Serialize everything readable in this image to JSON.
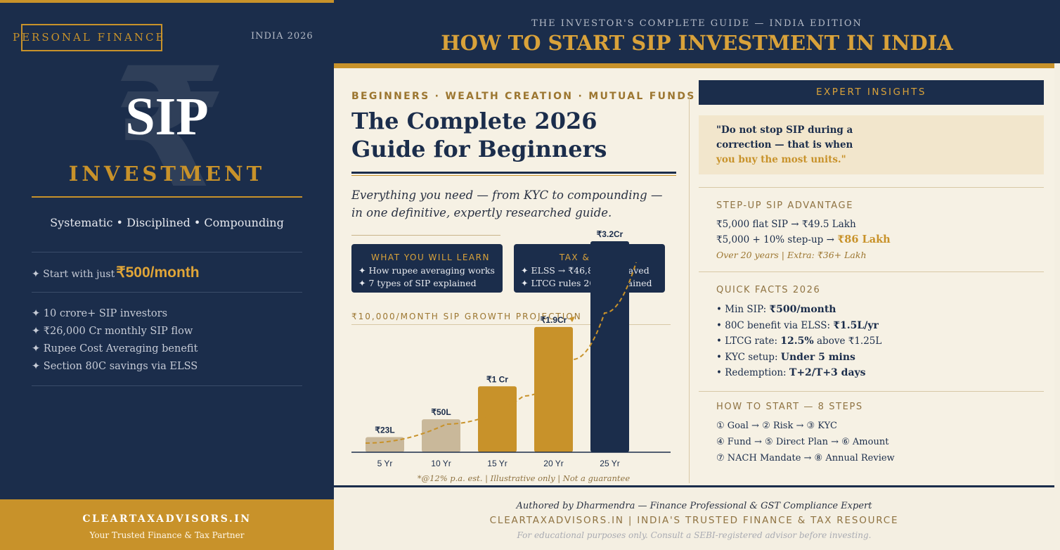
{
  "left_panel": {
    "brand_tag": "PERSONAL FINANCE",
    "year": "INDIA 2026",
    "bg_symbol": "₹",
    "title": "SIP",
    "subtitle": "INVESTMENT",
    "tagline": "Systematic • Disciplined • Compounding",
    "start_prefix": "✦ Start with just",
    "start_amount": "₹500/month",
    "stats": [
      "✦ 10 crore+ SIP investors",
      "✦ ₹26,000 Cr monthly SIP flow",
      "✦ Rupee Cost Averaging benefit",
      "✦ Section 80C savings via ELSS"
    ],
    "footer_site": "CLEARTAXADVISORS.IN",
    "footer_slogan": "Your Trusted Finance & Tax Partner"
  },
  "header": {
    "kicker": "THE INVESTOR'S COMPLETE GUIDE — INDIA EDITION",
    "headline": "HOW TO START SIP INVESTMENT IN INDIA"
  },
  "main": {
    "categories": "BEGINNERS · WEALTH CREATION · MUTUAL FUNDS",
    "title_line1": "The Complete 2026",
    "title_line2": "Guide for Beginners",
    "lede_line1": "Everything you need — from KYC to compounding —",
    "lede_line2": "in one definitive, expertly researched guide.",
    "learn_box": {
      "title": "WHAT YOU WILL LEARN",
      "items": [
        "✦ How rupee averaging works",
        "✦ 7 types of SIP explained"
      ]
    },
    "tax_box": {
      "title": "TAX & RULES",
      "items": [
        "✦ ELSS → ₹46,800 tax saved",
        "✦ LTCG rules 2026 explained"
      ]
    },
    "chart_title": "₹10,000/MONTH SIP GROWTH PROJECTION",
    "chart_note": "*@12% p.a. est. | Illustrative only | Not a guarantee"
  },
  "chart_data": {
    "type": "bar",
    "title": "₹10,000/MONTH SIP GROWTH PROJECTION",
    "categories": [
      "5 Yr",
      "10 Yr",
      "15 Yr",
      "20 Yr",
      "25 Yr"
    ],
    "values": [
      23,
      50,
      100,
      190,
      320
    ],
    "value_unit": "₹ Lakh",
    "data_labels": [
      "₹23L",
      "₹50L",
      "₹1 Cr",
      "₹1.9Cr",
      "₹3.2Cr"
    ],
    "colors": [
      "#c9b89a",
      "#c9b89a",
      "#c8922a",
      "#c8922a",
      "#1b2d4b"
    ],
    "trend_line": "dashed",
    "trend_color": "#c8922a",
    "grid": false,
    "legend": "none"
  },
  "insights": {
    "header": "EXPERT INSIGHTS",
    "quote_line1": "\"Do not stop SIP during a",
    "quote_line2": "correction — that is when",
    "quote_line3": "you buy the most units.\"",
    "stepup_title": "STEP-UP SIP ADVANTAGE",
    "stepup_line1": "₹5,000 flat SIP → ₹49.5 Lakh",
    "stepup_line2_prefix": "₹5,000 + 10% step-up →",
    "stepup_line2_value": "₹86 Lakh",
    "stepup_note": "Over 20 years | Extra: ₹36+ Lakh",
    "facts_title": "QUICK FACTS 2026",
    "facts": [
      {
        "label": "• Min SIP:",
        "value": "₹500/month",
        "suffix": ""
      },
      {
        "label": "• 80C benefit via ELSS:",
        "value": "₹1.5L/yr",
        "suffix": ""
      },
      {
        "label": "• LTCG rate:",
        "value": "12.5%",
        "suffix": "above ₹1.25L"
      },
      {
        "label": "• KYC setup:",
        "value": "Under 5 mins",
        "suffix": ""
      },
      {
        "label": "• Redemption:",
        "value": "T+2/T+3 days",
        "suffix": ""
      }
    ],
    "steps_title": "HOW TO START — 8 STEPS",
    "steps": [
      "① Goal → ② Risk → ③ KYC",
      "④ Fund → ⑤ Direct Plan → ⑥ Amount",
      "⑦ NACH Mandate → ⑧ Annual Review"
    ]
  },
  "footer": {
    "byline": "Authored by Dharmendra — Finance Professional & GST Compliance Expert",
    "site": "CLEARTAXADVISORS.IN | INDIA'S TRUSTED FINANCE & TAX RESOURCE",
    "disclaimer": "For educational purposes only. Consult a SEBI-registered advisor before investing."
  }
}
